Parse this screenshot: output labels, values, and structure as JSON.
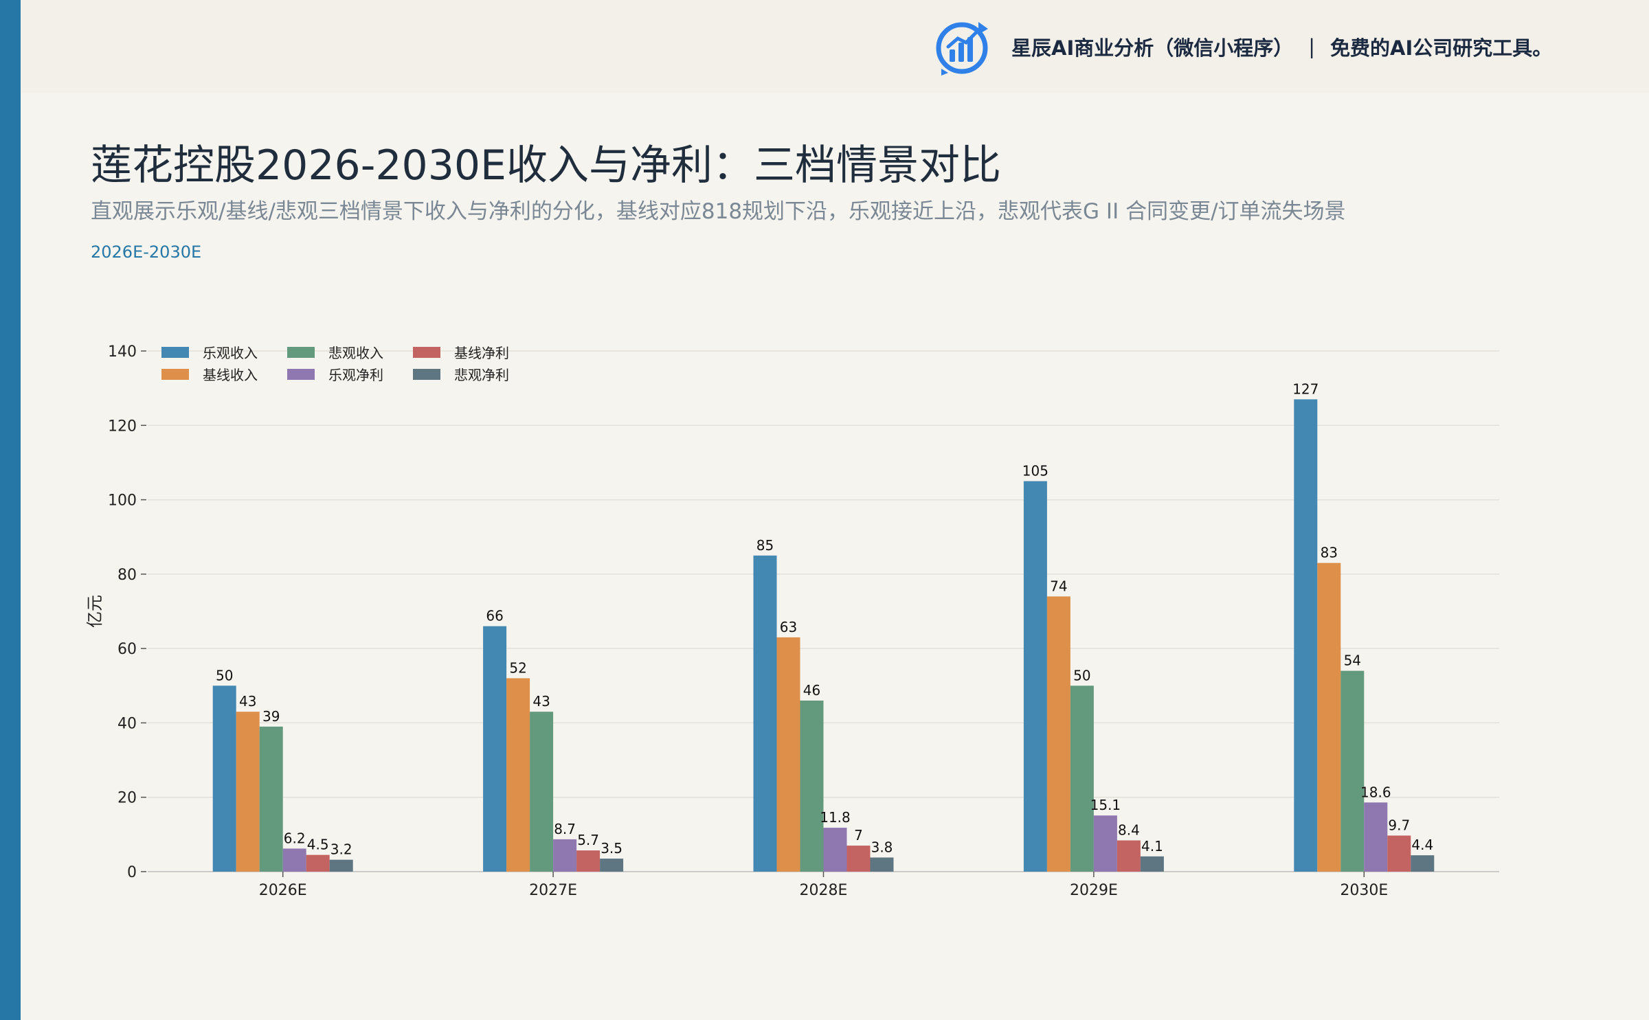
{
  "header": {
    "brand": "星辰AI商业分析（微信小程序）",
    "separator": "|",
    "tagline": "免费的AI公司研究工具。",
    "logo_icon": "bar-chart-refresh-icon"
  },
  "page": {
    "title": "莲花控股2026-2030E收入与净利：三档情景对比",
    "subtitle": "直观展示乐观/基线/悲观三档情景下收入与净利的分化，基线对应818规划下沿，乐观接近上沿，悲观代表G II 合同变更/订单流失场景",
    "range": "2026E-2030E"
  },
  "colors": {
    "accent": "#2677a6",
    "background": "#f6f4ee"
  },
  "chart_data": {
    "type": "bar",
    "categories": [
      "2026E",
      "2027E",
      "2028E",
      "2029E",
      "2030E"
    ],
    "series": [
      {
        "name": "乐观收入",
        "color": "#4388b3",
        "values": [
          50,
          66,
          85,
          105,
          127
        ]
      },
      {
        "name": "基线收入",
        "color": "#de904a",
        "values": [
          43,
          52,
          63,
          74,
          83
        ]
      },
      {
        "name": "悲观收入",
        "color": "#639a7e",
        "values": [
          39,
          43,
          46,
          50,
          54
        ]
      },
      {
        "name": "乐观净利",
        "color": "#8e78af",
        "values": [
          6.2,
          8.7,
          11.8,
          15.1,
          18.6
        ]
      },
      {
        "name": "基线净利",
        "color": "#c36362",
        "values": [
          4.5,
          5.7,
          7,
          8.4,
          9.7
        ]
      },
      {
        "name": "悲观净利",
        "color": "#5d7682",
        "values": [
          3.2,
          3.5,
          3.8,
          4.1,
          4.4
        ]
      }
    ],
    "ylabel": "亿元",
    "ylim": [
      0,
      140
    ],
    "yticks": [
      0,
      20,
      40,
      60,
      80,
      100,
      120,
      140
    ],
    "grid": true,
    "legend": "top-left"
  }
}
